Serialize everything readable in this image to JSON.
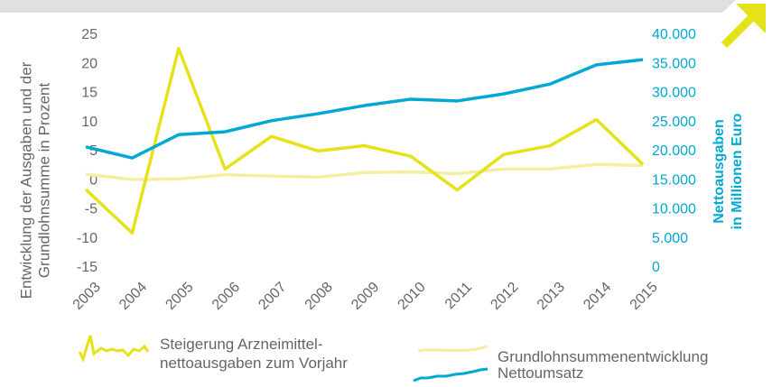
{
  "chart_data": {
    "type": "line",
    "categories": [
      "2003",
      "2004",
      "2005",
      "2006",
      "2007",
      "2008",
      "2009",
      "2010",
      "2011",
      "2012",
      "2013",
      "2014",
      "2015"
    ],
    "ylabel": [
      "Entwicklung der Ausgaben und der",
      "Grundlohnsumme in Prozent"
    ],
    "y2label": [
      "Nettoausgaben",
      "in Millionen Euro"
    ],
    "ylim": [
      -15,
      25
    ],
    "yticks": [
      -15,
      -10,
      -5,
      0,
      5,
      10,
      15,
      20,
      25
    ],
    "y2lim": [
      0,
      40000
    ],
    "y2ticks": [
      {
        "value": 0,
        "label": "0"
      },
      {
        "value": 5000,
        "label": "5.000"
      },
      {
        "value": 10000,
        "label": "10.000"
      },
      {
        "value": 15000,
        "label": "15.000"
      },
      {
        "value": 20000,
        "label": "20.000"
      },
      {
        "value": 25000,
        "label": "25.000"
      },
      {
        "value": 30000,
        "label": "30.000"
      },
      {
        "value": 35000,
        "label": "35.000"
      },
      {
        "value": 40000,
        "label": "40.000"
      }
    ],
    "y2color": "#00a8d4",
    "series": [
      {
        "name": "Steigerung Arzneimittel-nettoausgaben zum Vorjahr",
        "color": "#e6e21a",
        "values": [
          -1.5,
          -9,
          22.7,
          2,
          7.6,
          5.1,
          6,
          4.2,
          -1.6,
          4.5,
          6,
          10.5,
          2.8
        ]
      },
      {
        "name": "Grundlohnsummenentwicklung",
        "color": "#f3eea0",
        "values": [
          1.1,
          0.2,
          0.3,
          1,
          0.8,
          0.6,
          1.4,
          1.5,
          1.2,
          2,
          2,
          2.8,
          2.6
        ]
      },
      {
        "name": "Nettoumsatz",
        "color": "#00a8d4",
        "axis": "y2",
        "values": [
          20800,
          18900,
          22900,
          23400,
          25300,
          26500,
          27900,
          29000,
          28700,
          29900,
          31600,
          34900,
          35800
        ]
      }
    ]
  }
}
